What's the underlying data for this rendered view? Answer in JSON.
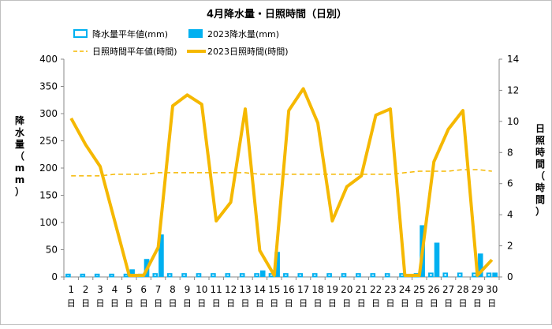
{
  "chart_data": {
    "type": "bar+line",
    "title": "4月降水量・日照時間（日別）",
    "categories": [
      "1",
      "2",
      "3",
      "4",
      "5",
      "6",
      "7",
      "8",
      "9",
      "10",
      "11",
      "12",
      "13",
      "14",
      "15",
      "16",
      "17",
      "18",
      "19",
      "20",
      "21",
      "22",
      "23",
      "24",
      "25",
      "26",
      "27",
      "28",
      "29",
      "30"
    ],
    "x_suffix": "日",
    "y_left": {
      "label": "降水量（mm）",
      "lim": [
        0,
        400
      ],
      "ticks": [
        0,
        50,
        100,
        150,
        200,
        250,
        300,
        350,
        400
      ]
    },
    "y_right": {
      "label": "日照時間（時間）",
      "lim": [
        0,
        14
      ],
      "ticks": [
        0,
        2,
        4,
        6,
        8,
        10,
        12,
        14
      ]
    },
    "grid": false,
    "legend_position": "top",
    "series": [
      {
        "name": "降水量平年値(mm)",
        "type": "bar",
        "style": "outline",
        "axis": "left",
        "color": "#00b0f0",
        "values": [
          6,
          6,
          6,
          6,
          6,
          6,
          7,
          7,
          7,
          7,
          7,
          7,
          7,
          7,
          7,
          7,
          7,
          7,
          7,
          7,
          7,
          7,
          7,
          7,
          7,
          8,
          8,
          8,
          8,
          8
        ]
      },
      {
        "name": "2023降水量(mm)",
        "type": "bar",
        "style": "filled",
        "axis": "left",
        "color": "#00b0f0",
        "values": [
          0,
          0,
          0,
          0,
          14,
          33,
          78,
          0,
          0,
          0,
          0,
          0,
          0,
          12,
          46,
          0,
          0,
          0,
          0,
          0,
          0,
          0,
          0,
          0,
          95,
          63,
          0,
          0,
          43,
          8
        ]
      },
      {
        "name": "日照時間平年値(時間)",
        "type": "line",
        "style": "dashed",
        "axis": "right",
        "color": "#f5b800",
        "values": [
          6.5,
          6.5,
          6.5,
          6.6,
          6.6,
          6.6,
          6.7,
          6.7,
          6.7,
          6.7,
          6.7,
          6.7,
          6.7,
          6.6,
          6.6,
          6.6,
          6.6,
          6.6,
          6.6,
          6.6,
          6.6,
          6.6,
          6.6,
          6.7,
          6.8,
          6.8,
          6.8,
          6.9,
          6.9,
          6.8
        ]
      },
      {
        "name": "2023日照時間(時間)",
        "type": "line",
        "style": "solid",
        "axis": "right",
        "color": "#f5b800",
        "values": [
          10.2,
          8.5,
          7.1,
          3.6,
          0.1,
          0.1,
          1.9,
          11.0,
          11.7,
          11.1,
          3.6,
          4.8,
          10.8,
          1.7,
          0.1,
          10.7,
          12.1,
          9.9,
          3.6,
          5.8,
          6.5,
          10.4,
          10.8,
          0.1,
          0.1,
          7.4,
          9.5,
          10.7,
          0.1,
          1.1
        ]
      }
    ]
  }
}
